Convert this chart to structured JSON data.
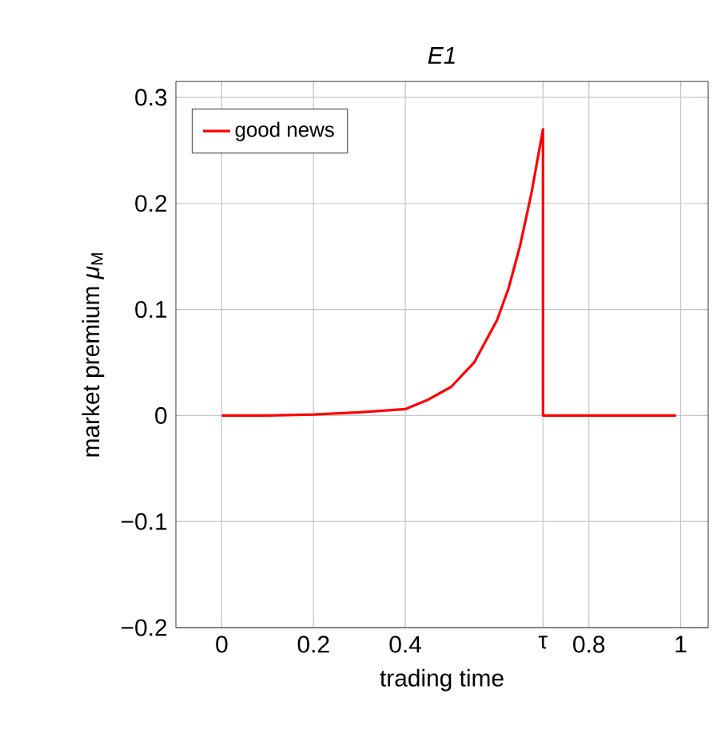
{
  "chart_data": {
    "type": "line",
    "title": "E1",
    "xlabel": "trading time",
    "ylabel": "market premium *μ*$_{M}$",
    "xlim": [
      -0.1,
      1.06
    ],
    "ylim": [
      -0.2,
      0.315
    ],
    "xticks": [
      0,
      0.2,
      0.4,
      {
        "value": 0.7,
        "label": "τ"
      },
      0.8,
      1
    ],
    "yticks": [
      {
        "value": -0.2,
        "label": "−0.2"
      },
      {
        "value": -0.1,
        "label": "−0.1"
      },
      0,
      0.1,
      0.2,
      0.3
    ],
    "grid": true,
    "legend": "top left",
    "series": [
      {
        "name": "good news",
        "color": "#ff0000",
        "x": [
          0,
          0.1,
          0.2,
          0.3,
          0.4,
          0.45,
          0.5,
          0.55,
          0.6,
          0.625,
          0.65,
          0.675,
          0.7,
          0.7,
          0.99
        ],
        "values": [
          0,
          0,
          0.001,
          0.003,
          0.006,
          0.015,
          0.027,
          0.05,
          0.09,
          0.12,
          0.16,
          0.21,
          0.27,
          0,
          0
        ]
      }
    ]
  }
}
